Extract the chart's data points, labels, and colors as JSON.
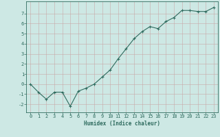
{
  "x": [
    0,
    1,
    2,
    3,
    4,
    5,
    6,
    7,
    8,
    9,
    10,
    11,
    12,
    13,
    14,
    15,
    16,
    17,
    18,
    19,
    20,
    21,
    22,
    23
  ],
  "y": [
    0.0,
    -0.8,
    -1.5,
    -0.8,
    -0.8,
    -2.2,
    -0.7,
    -0.4,
    0.0,
    0.7,
    1.4,
    2.5,
    3.5,
    4.5,
    5.2,
    5.7,
    5.5,
    6.2,
    6.6,
    7.3,
    7.3,
    7.2,
    7.2,
    7.6
  ],
  "line_color": "#2e6b5e",
  "marker": "+",
  "marker_size": 3,
  "bg_color": "#cde8e4",
  "grid_color": "#c8a8a8",
  "xlabel": "Humidex (Indice chaleur)",
  "ylim": [
    -2.8,
    8.2
  ],
  "xlim": [
    -0.5,
    23.5
  ],
  "yticks": [
    -2,
    -1,
    0,
    1,
    2,
    3,
    4,
    5,
    6,
    7
  ],
  "xticks": [
    0,
    1,
    2,
    3,
    4,
    5,
    6,
    7,
    8,
    9,
    10,
    11,
    12,
    13,
    14,
    15,
    16,
    17,
    18,
    19,
    20,
    21,
    22,
    23
  ],
  "tick_color": "#2e6b5e",
  "label_fontsize": 5.5,
  "tick_fontsize": 5.0,
  "line_width": 0.8
}
